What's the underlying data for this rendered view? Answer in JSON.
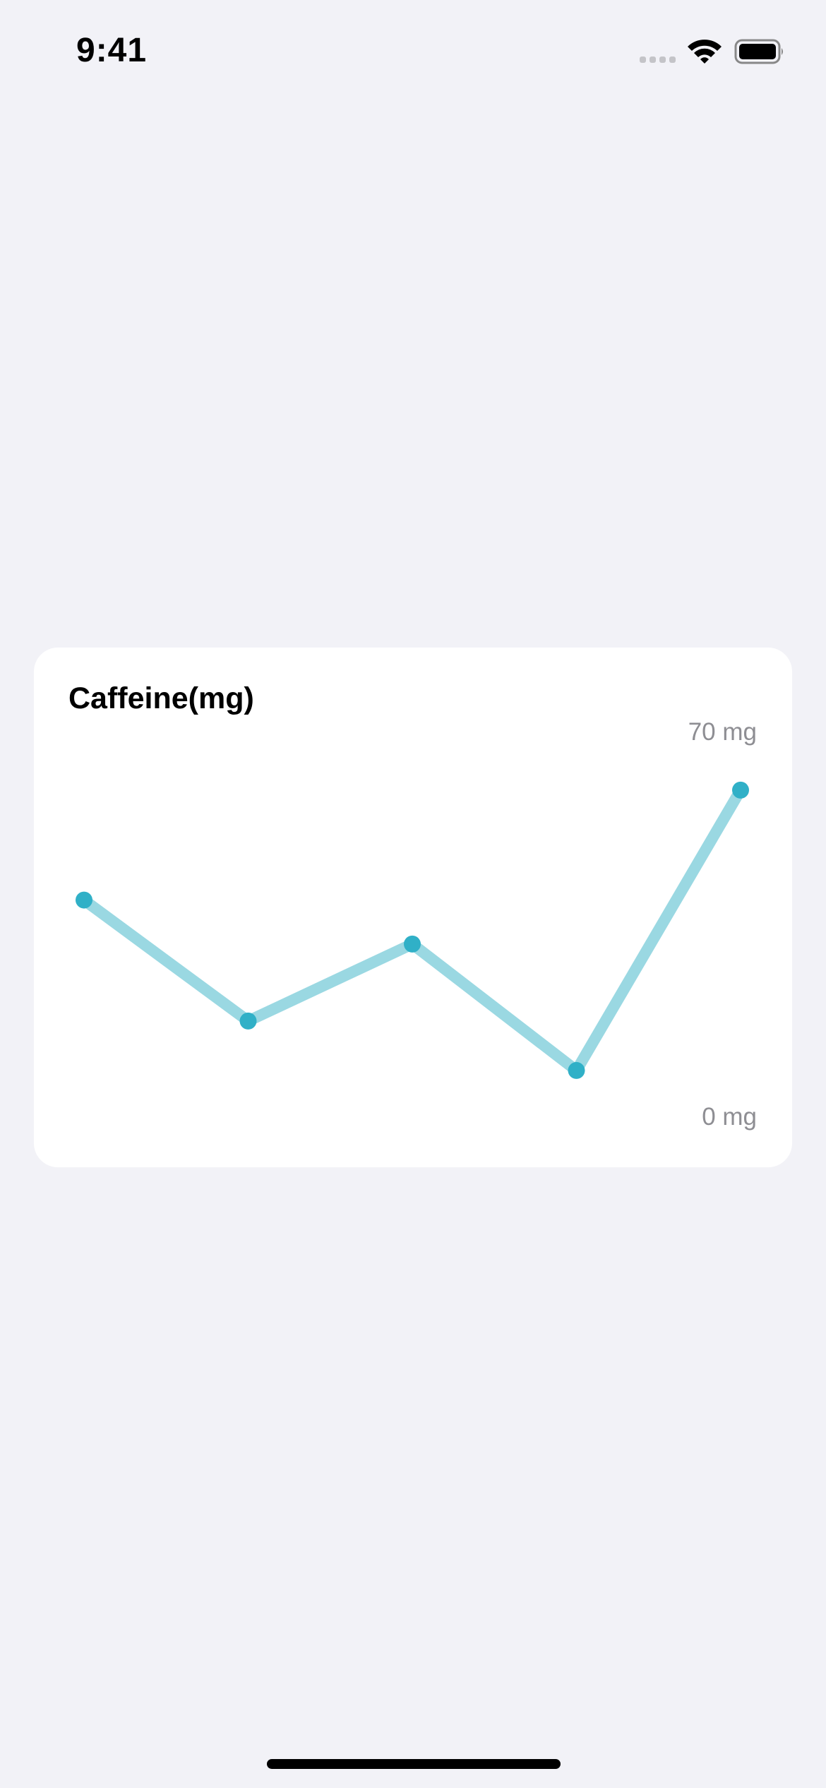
{
  "status_bar": {
    "time": "9:41",
    "icons": [
      "cellular-signal-icon",
      "wifi-icon",
      "battery-icon"
    ]
  },
  "card": {
    "title": "Caffeine(mg)"
  },
  "chart_data": {
    "type": "line",
    "title": "Caffeine(mg)",
    "x": [
      1,
      2,
      3,
      4,
      5
    ],
    "values": [
      40,
      18,
      32,
      9,
      60
    ],
    "ylim": [
      0,
      70
    ],
    "ytick_labels": [
      "70 mg",
      "0 mg"
    ],
    "grid": false,
    "line_color": "#9ad8e2",
    "point_color": "#30b0c7"
  }
}
